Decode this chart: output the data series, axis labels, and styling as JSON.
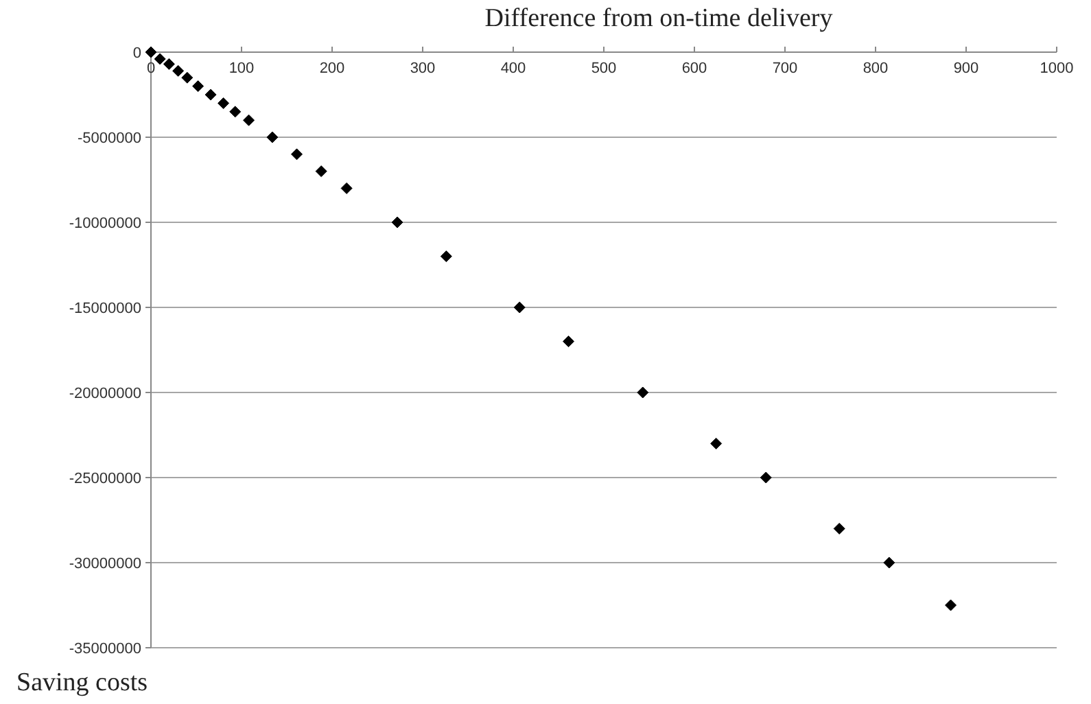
{
  "chart_data": {
    "type": "scatter",
    "xlabel": "Difference from on-time delivery",
    "ylabel": "Saving costs",
    "xlim": [
      0,
      1000
    ],
    "xticks": [
      0,
      100,
      200,
      300,
      400,
      500,
      600,
      700,
      800,
      900,
      1000
    ],
    "ylim": [
      -35000000,
      0
    ],
    "yticks": [
      -35000000,
      -30000000,
      -25000000,
      -20000000,
      -15000000,
      -10000000,
      -5000000,
      0
    ],
    "grid": "y",
    "marker": "diamond",
    "series": [
      {
        "color": "#000000",
        "x": [
          0,
          10,
          20,
          30,
          40,
          52,
          66,
          80,
          93,
          108,
          134,
          161,
          188,
          216,
          272,
          326,
          407,
          461,
          543,
          624,
          679,
          760,
          815,
          883
        ],
        "values": [
          0,
          -400000,
          -700000,
          -1100000,
          -1500000,
          -2000000,
          -2500000,
          -3000000,
          -3500000,
          -4000000,
          -5000000,
          -6000000,
          -7000000,
          -8000000,
          -10000000,
          -12000000,
          -15000000,
          -17000000,
          -20000000,
          -23000000,
          -25000000,
          -28000000,
          -30000000,
          -32500000
        ]
      }
    ]
  }
}
